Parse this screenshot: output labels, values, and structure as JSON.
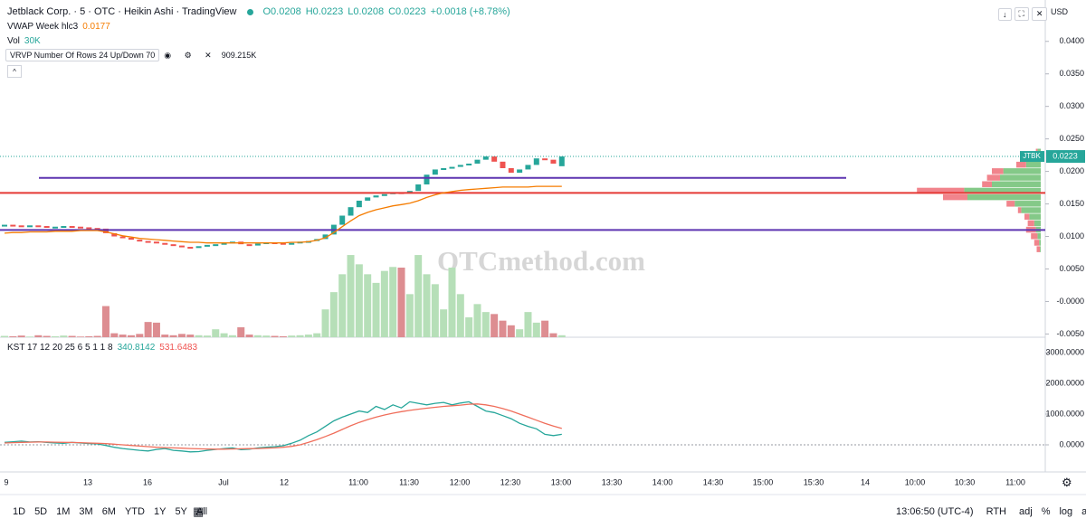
{
  "header": {
    "title": "Jetblack Corp. · 5 · OTC · Heikin Ashi · TradingView",
    "open": "O0.0208",
    "high": "H0.0223",
    "low": "L0.0208",
    "close": "C0.0223",
    "change": "+0.0018 (+8.78%)",
    "currency": "USD"
  },
  "indicators": {
    "vwap_name": "VWAP Week hlc3",
    "vol_name": "Vol",
    "vol_value": "30K",
    "vrvp_name": "VRVP Number Of Rows 24 Up/Down 70",
    "vrvp_value": "909.215K",
    "kst_name": "KST 17 12 20 25 6 5 1 1 8"
  },
  "watermark": "OTCmethod.com",
  "toolbar": {
    "ranges": [
      "1D",
      "5D",
      "1M",
      "3M",
      "6M",
      "YTD",
      "1Y",
      "5Y",
      "All"
    ],
    "time": "13:06:50 (UTC-4)",
    "session": "RTH",
    "options": [
      "adj",
      "%",
      "log",
      "auto"
    ]
  },
  "chart_data": [
    {
      "type": "candlestick",
      "symbol": "JTBK",
      "up_color": "#26a69a",
      "down_color": "#ef5350",
      "open": [
        0.0117,
        0.0118,
        0.0117,
        0.0116,
        0.0117,
        0.0116,
        0.0115,
        0.0115,
        0.0116,
        0.0115,
        0.0114,
        0.0113,
        0.0112,
        0.0105,
        0.01,
        0.0098,
        0.0095,
        0.0093,
        0.0092,
        0.009,
        0.0088,
        0.0086,
        0.0084,
        0.0083,
        0.0085,
        0.0087,
        0.0088,
        0.009,
        0.0092,
        0.0088,
        0.0086,
        0.0089,
        0.0091,
        0.009,
        0.0089,
        0.009,
        0.0092,
        0.0093,
        0.0096,
        0.0103,
        0.0118,
        0.0132,
        0.0145,
        0.0155,
        0.016,
        0.0163,
        0.0165,
        0.0168,
        0.0166,
        0.017,
        0.018,
        0.0195,
        0.0203,
        0.0205,
        0.0207,
        0.021,
        0.0212,
        0.0218,
        0.0223,
        0.0215,
        0.0205,
        0.0198,
        0.0203,
        0.021,
        0.022,
        0.0218,
        0.0208
      ],
      "close": [
        0.0118,
        0.0117,
        0.0116,
        0.0117,
        0.0116,
        0.0115,
        0.0115,
        0.0116,
        0.0115,
        0.0114,
        0.0113,
        0.0112,
        0.0105,
        0.01,
        0.0098,
        0.0095,
        0.0093,
        0.0092,
        0.009,
        0.0088,
        0.0086,
        0.0084,
        0.0083,
        0.0085,
        0.0087,
        0.0088,
        0.009,
        0.0092,
        0.0088,
        0.0086,
        0.0089,
        0.0091,
        0.009,
        0.0089,
        0.009,
        0.0092,
        0.0093,
        0.0096,
        0.0103,
        0.0118,
        0.0132,
        0.0145,
        0.0155,
        0.016,
        0.0163,
        0.0165,
        0.0168,
        0.0166,
        0.017,
        0.018,
        0.0195,
        0.0203,
        0.0205,
        0.0207,
        0.021,
        0.0212,
        0.0218,
        0.0223,
        0.0215,
        0.0205,
        0.0198,
        0.0203,
        0.021,
        0.022,
        0.0218,
        0.0212,
        0.0223
      ],
      "vwap": {
        "color": "#f57c00",
        "values": [
          0.0105,
          0.0106,
          0.0106,
          0.0107,
          0.0107,
          0.0107,
          0.0108,
          0.0108,
          0.0108,
          0.0109,
          0.0109,
          0.0109,
          0.0107,
          0.0104,
          0.0101,
          0.0099,
          0.0097,
          0.0096,
          0.0095,
          0.0094,
          0.0093,
          0.0092,
          0.0091,
          0.0091,
          0.009,
          0.009,
          0.009,
          0.009,
          0.009,
          0.009,
          0.009,
          0.009,
          0.009,
          0.009,
          0.0091,
          0.0091,
          0.0092,
          0.0094,
          0.0098,
          0.0106,
          0.0115,
          0.0124,
          0.0132,
          0.0137,
          0.0141,
          0.0144,
          0.0147,
          0.0149,
          0.0151,
          0.0155,
          0.016,
          0.0164,
          0.0167,
          0.0169,
          0.0171,
          0.0172,
          0.0173,
          0.0174,
          0.0175,
          0.0176,
          0.0176,
          0.0176,
          0.0176,
          0.0177,
          0.0177,
          0.0177,
          0.0177
        ]
      },
      "levels": [
        {
          "value": 0.019,
          "color": "#5e35b1"
        },
        {
          "value": 0.0167,
          "color": "#e53935"
        },
        {
          "value": 0.011,
          "color": "#5e35b1"
        }
      ],
      "ylim": [
        -0.0055,
        0.0408
      ],
      "yticks": [
        {
          "value": 0.04,
          "label": "0.0400"
        },
        {
          "value": 0.035,
          "label": "0.0350"
        },
        {
          "value": 0.03,
          "label": "0.0300"
        },
        {
          "value": 0.025,
          "label": "0.0250"
        },
        {
          "value": 0.02,
          "label": "0.0200"
        },
        {
          "value": 0.015,
          "label": "0.0150"
        },
        {
          "value": 0.01,
          "label": "0.0100"
        },
        {
          "value": 0.005,
          "label": "0.0050"
        },
        {
          "value": 0,
          "label": "-0.0000"
        },
        {
          "value": -0.005,
          "label": "-0.0050"
        }
      ],
      "x_labels": [
        "9",
        "13",
        "16",
        "Jul",
        "12",
        "11:00",
        "11:30",
        "12:00",
        "12:30",
        "13:00",
        "13:30",
        "14:00",
        "14:30",
        "15:00",
        "15:30",
        "14",
        "10:00",
        "10:30",
        "11:00"
      ]
    },
    {
      "type": "bar",
      "up_color": "#b6dfb8",
      "down_color": "#dd8d91",
      "ylim": [
        0,
        1500
      ],
      "values": [
        20,
        15,
        25,
        10,
        30,
        20,
        15,
        25,
        20,
        10,
        15,
        20,
        470,
        60,
        40,
        30,
        50,
        230,
        220,
        40,
        30,
        50,
        40,
        30,
        25,
        120,
        60,
        30,
        150,
        40,
        30,
        25,
        20,
        15,
        25,
        30,
        40,
        60,
        420,
        680,
        950,
        1240,
        1100,
        950,
        820,
        1000,
        1060,
        1050,
        650,
        1240,
        950,
        800,
        420,
        1050,
        650,
        300,
        500,
        380,
        350,
        250,
        180,
        120,
        380,
        220,
        250,
        60,
        30
      ]
    },
    {
      "type": "profile",
      "up_color": "#6fbf73",
      "down_color": "#ef6f78",
      "xlim": [
        0,
        1000
      ],
      "prices": [
        0.023,
        0.022,
        0.021,
        0.02,
        0.019,
        0.018,
        0.017,
        0.016,
        0.015,
        0.014,
        0.013,
        0.012,
        0.011,
        0.01,
        0.009,
        0.008
      ],
      "up": [
        20,
        60,
        90,
        230,
        250,
        300,
        470,
        450,
        160,
        120,
        70,
        40,
        30,
        20,
        10,
        5
      ],
      "down": [
        10,
        40,
        60,
        70,
        80,
        60,
        290,
        150,
        50,
        20,
        30,
        40,
        60,
        40,
        30,
        20
      ]
    },
    {
      "type": "line",
      "ylim": [
        -765,
        3353
      ],
      "yticks": [
        {
          "value": 3000,
          "label": "3000.0000"
        },
        {
          "value": 2000,
          "label": "2000.0000"
        },
        {
          "value": 1000,
          "label": "1000.0000"
        },
        {
          "value": 0,
          "label": "0.0000"
        }
      ],
      "series": [
        {
          "color": "#26a69a",
          "values": [
            80,
            100,
            120,
            90,
            100,
            80,
            60,
            50,
            80,
            60,
            40,
            30,
            -20,
            -80,
            -120,
            -150,
            -180,
            -200,
            -150,
            -120,
            -180,
            -200,
            -230,
            -220,
            -180,
            -150,
            -120,
            -100,
            -160,
            -140,
            -100,
            -80,
            -60,
            -30,
            50,
            150,
            300,
            420,
            600,
            780,
            900,
            1000,
            1100,
            1050,
            1250,
            1150,
            1300,
            1200,
            1400,
            1350,
            1300,
            1350,
            1380,
            1300,
            1360,
            1400,
            1250,
            1100,
            1050,
            950,
            850,
            700,
            600,
            520,
            340,
            300,
            340.8142
          ]
        },
        {
          "color": "#f06e5b",
          "values": [
            60,
            70,
            80,
            85,
            90,
            90,
            85,
            80,
            75,
            70,
            60,
            50,
            40,
            20,
            0,
            -20,
            -40,
            -60,
            -80,
            -90,
            -100,
            -110,
            -120,
            -130,
            -135,
            -140,
            -140,
            -135,
            -130,
            -125,
            -120,
            -110,
            -100,
            -80,
            -50,
            0,
            80,
            170,
            270,
            380,
            500,
            620,
            730,
            820,
            900,
            970,
            1030,
            1080,
            1120,
            1160,
            1190,
            1220,
            1250,
            1270,
            1290,
            1320,
            1330,
            1300,
            1250,
            1180,
            1100,
            1000,
            900,
            800,
            700,
            610,
            531.6483
          ]
        }
      ]
    }
  ]
}
